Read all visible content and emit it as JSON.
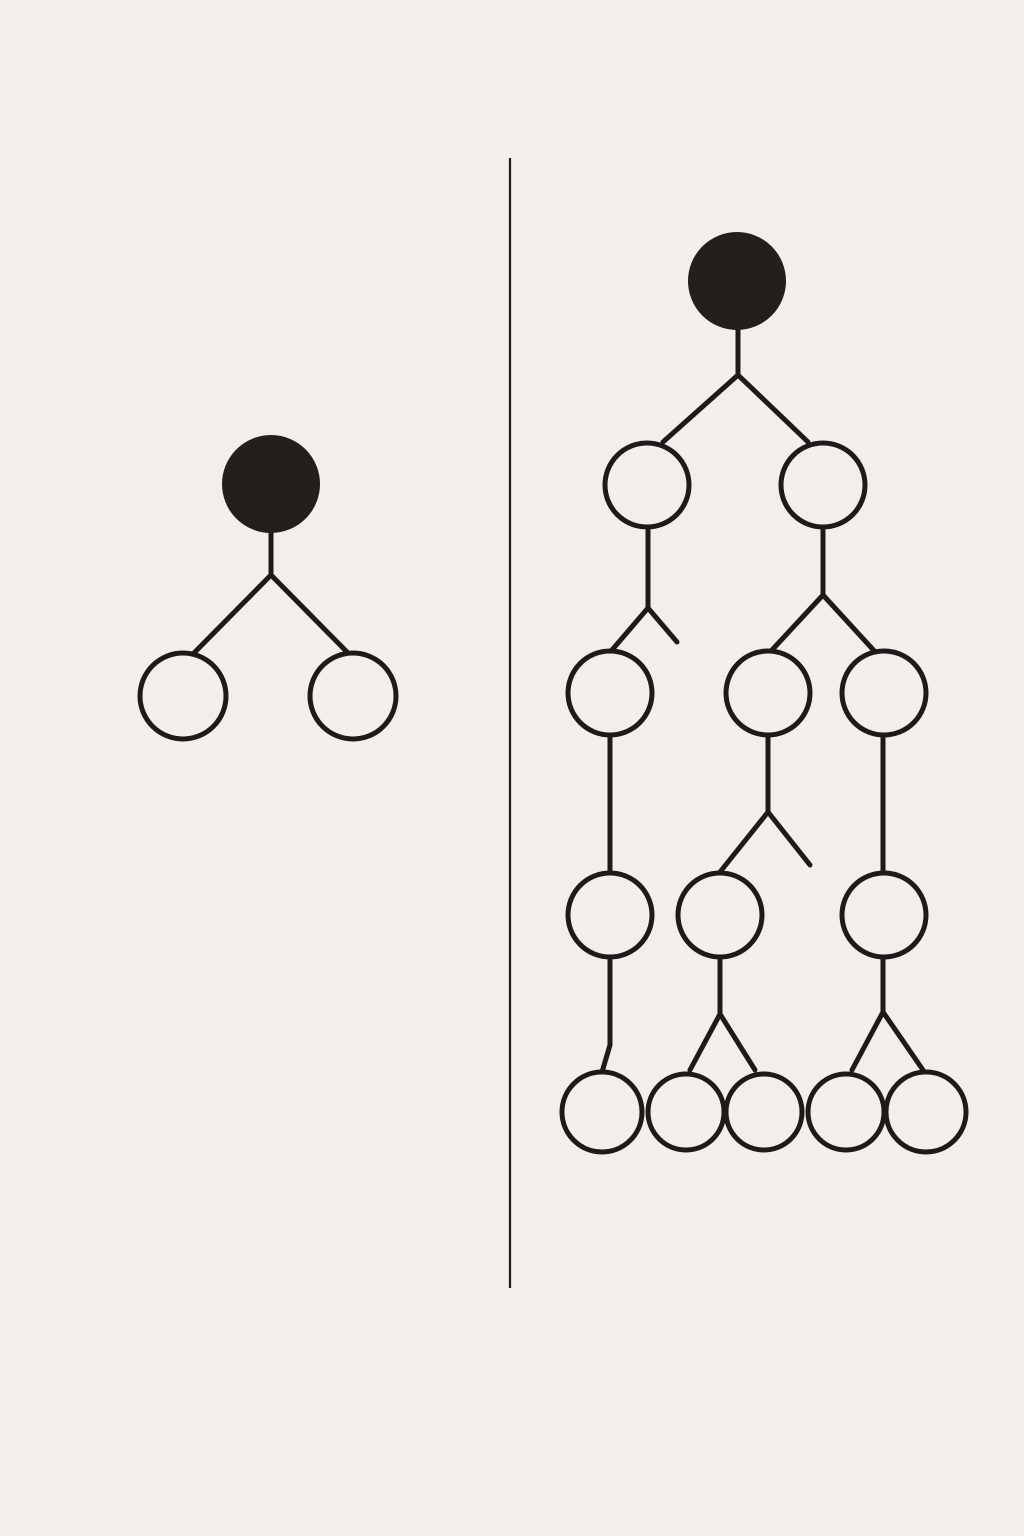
{
  "colors": {
    "background": "#f2efea",
    "ink": "#1d1b19",
    "node_fill": "#f2efea",
    "root_fill": "#221f1d"
  },
  "diagram": {
    "panels": [
      {
        "id": "left",
        "description_name": "small-tree",
        "nodes": [
          {
            "id": "L0",
            "kind": "root"
          },
          {
            "id": "L1",
            "kind": "leaf"
          },
          {
            "id": "L2",
            "kind": "leaf"
          }
        ],
        "edges": [
          [
            "L0",
            "L1"
          ],
          [
            "L0",
            "L2"
          ]
        ]
      },
      {
        "id": "right",
        "description_name": "large-tree",
        "nodes": [
          {
            "id": "R0",
            "kind": "root"
          },
          {
            "id": "A",
            "kind": "node"
          },
          {
            "id": "B",
            "kind": "node"
          },
          {
            "id": "C",
            "kind": "node"
          },
          {
            "id": "D",
            "kind": "node"
          },
          {
            "id": "E",
            "kind": "node"
          },
          {
            "id": "F",
            "kind": "node"
          },
          {
            "id": "G",
            "kind": "node"
          },
          {
            "id": "H",
            "kind": "node"
          },
          {
            "id": "I",
            "kind": "node"
          },
          {
            "id": "J",
            "kind": "node"
          },
          {
            "id": "K",
            "kind": "node"
          },
          {
            "id": "L",
            "kind": "node"
          },
          {
            "id": "M",
            "kind": "node"
          }
        ],
        "edges": [
          [
            "R0",
            "A"
          ],
          [
            "R0",
            "B"
          ],
          [
            "A",
            "C"
          ],
          [
            "A",
            "dangling"
          ],
          [
            "B",
            "D"
          ],
          [
            "B",
            "E"
          ],
          [
            "C",
            "F"
          ],
          [
            "D",
            "G"
          ],
          [
            "D",
            "dangling"
          ],
          [
            "E",
            "H"
          ],
          [
            "F",
            "I"
          ],
          [
            "G",
            "J"
          ],
          [
            "G",
            "K"
          ],
          [
            "H",
            "L"
          ],
          [
            "H",
            "M"
          ]
        ]
      }
    ]
  }
}
